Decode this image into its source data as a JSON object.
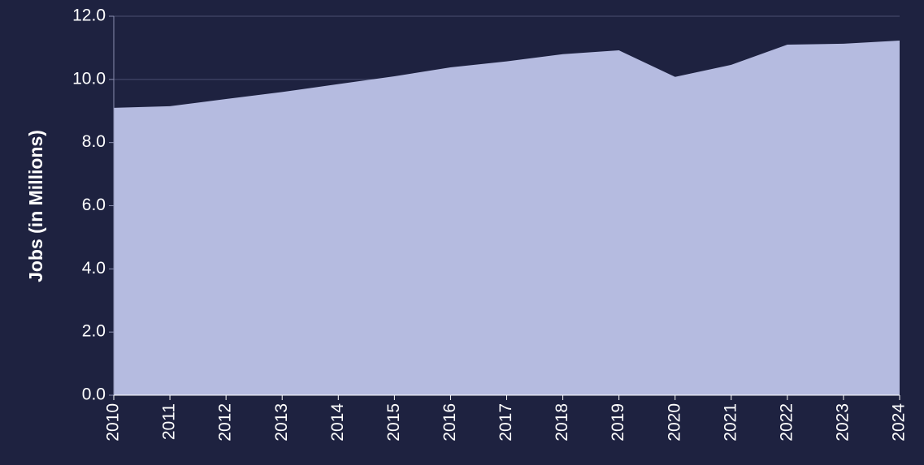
{
  "chart_data": {
    "type": "area",
    "ylabel": "Jobs (in Millions)",
    "categories": [
      "2010",
      "2011",
      "2012",
      "2013",
      "2014",
      "2015",
      "2016",
      "2017",
      "2018",
      "2019",
      "2020",
      "2021",
      "2022",
      "2023",
      "2024"
    ],
    "values": [
      9.1,
      9.15,
      9.38,
      9.6,
      9.85,
      10.1,
      10.38,
      10.57,
      10.8,
      10.92,
      10.08,
      10.46,
      11.1,
      11.13,
      11.23
    ],
    "color": "#b5bbe0",
    "ylim": [
      0,
      12
    ],
    "yticks": [
      {
        "value": 0,
        "label": "0.0"
      },
      {
        "value": 2,
        "label": "2.0"
      },
      {
        "value": 4,
        "label": "4.0"
      },
      {
        "value": 6,
        "label": "6.0"
      },
      {
        "value": 8,
        "label": "8.0"
      },
      {
        "value": 10,
        "label": "10.0"
      },
      {
        "value": 12,
        "label": "12.0"
      }
    ],
    "grid": true
  }
}
